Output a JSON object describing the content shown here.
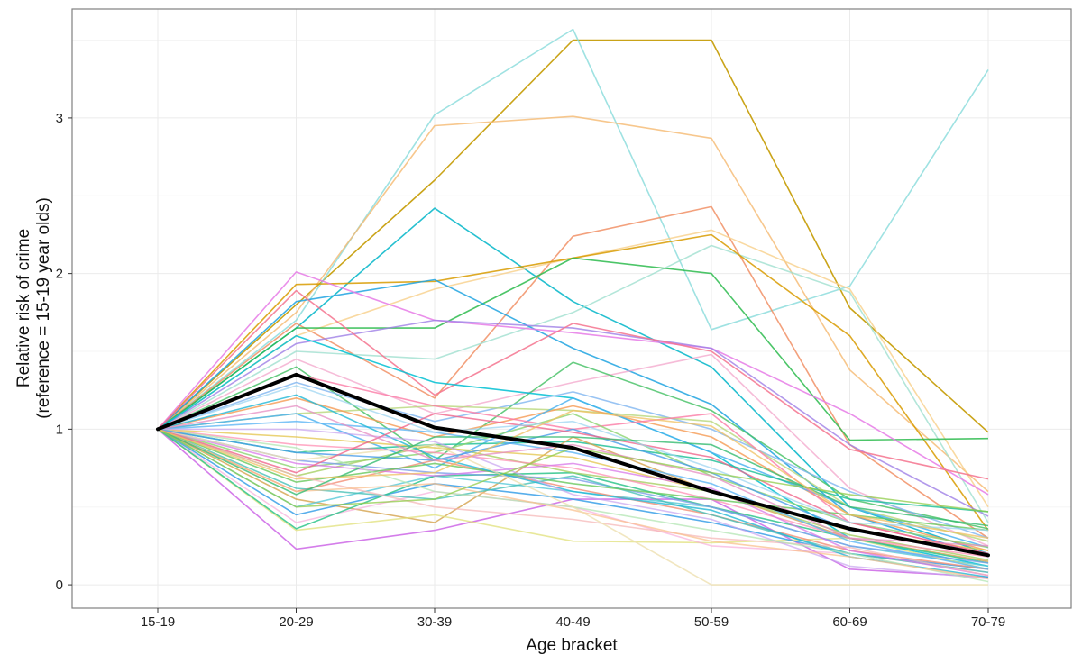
{
  "chart_data": {
    "type": "line",
    "xlabel": "Age bracket",
    "ylabel_lines": [
      "Relative risk of crime",
      "(reference = 15-19 year olds)"
    ],
    "categories": [
      "15-19",
      "20-29",
      "30-39",
      "40-49",
      "50-59",
      "60-69",
      "70-79"
    ],
    "ylim": [
      -0.15,
      3.7
    ],
    "yticks": [
      0,
      1,
      2,
      3
    ],
    "ytick_labels": [
      "0",
      "1",
      "2",
      "3"
    ],
    "grid": true,
    "average_series": {
      "name": "Average",
      "color": "#000000",
      "values": [
        1.0,
        1.35,
        1.01,
        0.88,
        0.6,
        0.36,
        0.19
      ]
    },
    "series": [
      {
        "color": "#C49A00",
        "opacity": 0.9,
        "values": [
          1.0,
          1.8,
          2.6,
          3.5,
          3.5,
          1.78,
          0.98
        ]
      },
      {
        "color": "#7FD8D8",
        "opacity": 0.75,
        "values": [
          1.0,
          1.7,
          3.02,
          3.57,
          1.64,
          1.92,
          3.31
        ]
      },
      {
        "color": "#F5B971",
        "opacity": 0.8,
        "values": [
          1.0,
          1.75,
          2.95,
          3.01,
          2.87,
          1.38,
          0.6
        ]
      },
      {
        "color": "#00B5C8",
        "opacity": 0.85,
        "values": [
          1.0,
          1.65,
          2.42,
          1.82,
          1.4,
          0.5,
          0.2
        ]
      },
      {
        "color": "#F08A5D",
        "opacity": 0.8,
        "values": [
          1.0,
          1.68,
          1.2,
          2.24,
          2.43,
          0.9,
          0.3
        ]
      },
      {
        "color": "#F7D08A",
        "opacity": 0.8,
        "values": [
          1.0,
          1.6,
          1.9,
          2.1,
          2.28,
          1.9,
          0.5
        ]
      },
      {
        "color": "#A0E0CF",
        "opacity": 0.8,
        "values": [
          1.0,
          1.5,
          1.45,
          1.75,
          2.18,
          1.88,
          0.4
        ]
      },
      {
        "color": "#D89B00",
        "opacity": 0.85,
        "values": [
          1.0,
          1.93,
          1.95,
          2.1,
          2.25,
          1.6,
          0.35
        ]
      },
      {
        "color": "#2DBB4E",
        "opacity": 0.85,
        "values": [
          1.0,
          1.65,
          1.65,
          2.1,
          2.0,
          0.93,
          0.94
        ]
      },
      {
        "color": "#1FA3E0",
        "opacity": 0.85,
        "values": [
          1.0,
          1.82,
          1.96,
          1.52,
          1.16,
          0.45,
          0.18
        ]
      },
      {
        "color": "#E67BE6",
        "opacity": 0.85,
        "values": [
          1.0,
          2.01,
          1.7,
          1.62,
          1.52,
          1.1,
          0.58
        ]
      },
      {
        "color": "#9F7FE6",
        "opacity": 0.8,
        "values": [
          1.0,
          1.55,
          1.7,
          1.65,
          1.52,
          0.9,
          0.44
        ]
      },
      {
        "color": "#F4738E",
        "opacity": 0.85,
        "values": [
          1.0,
          1.89,
          1.22,
          1.68,
          1.5,
          0.87,
          0.68
        ]
      },
      {
        "color": "#F2A0C8",
        "opacity": 0.7,
        "values": [
          1.0,
          1.45,
          1.1,
          1.3,
          1.48,
          0.62,
          0.25
        ]
      },
      {
        "color": "#4CC36B",
        "opacity": 0.85,
        "values": [
          1.0,
          1.4,
          0.8,
          1.43,
          1.12,
          0.55,
          0.36
        ]
      },
      {
        "color": "#00BFD2",
        "opacity": 0.85,
        "values": [
          1.0,
          1.6,
          1.3,
          1.2,
          0.85,
          0.3,
          0.12
        ]
      },
      {
        "color": "#7FB5F0",
        "opacity": 0.8,
        "values": [
          1.0,
          1.3,
          1.05,
          1.24,
          1.0,
          0.6,
          0.3
        ]
      },
      {
        "color": "#B8D77A",
        "opacity": 0.8,
        "values": [
          1.0,
          1.1,
          1.15,
          1.12,
          1.05,
          0.5,
          0.28
        ]
      },
      {
        "color": "#F59A52",
        "opacity": 0.8,
        "values": [
          1.0,
          1.2,
          0.95,
          1.15,
          0.95,
          0.45,
          0.22
        ]
      },
      {
        "color": "#4DB3F0",
        "opacity": 0.85,
        "values": [
          1.0,
          1.1,
          0.75,
          1.2,
          0.85,
          0.5,
          0.24
        ]
      },
      {
        "color": "#FB7AA5",
        "opacity": 0.8,
        "values": [
          1.0,
          1.35,
          1.15,
          1.0,
          1.1,
          0.4,
          0.2
        ]
      },
      {
        "color": "#26C29A",
        "opacity": 0.85,
        "values": [
          1.0,
          0.85,
          0.9,
          0.92,
          0.8,
          0.55,
          0.47
        ]
      },
      {
        "color": "#8BD470",
        "opacity": 0.8,
        "values": [
          1.0,
          0.75,
          0.85,
          1.1,
          0.7,
          0.4,
          0.24
        ]
      },
      {
        "color": "#D4A24C",
        "opacity": 0.8,
        "values": [
          1.0,
          0.55,
          0.4,
          0.95,
          0.6,
          0.3,
          0.15
        ]
      },
      {
        "color": "#58C9D8",
        "opacity": 0.8,
        "values": [
          1.0,
          0.5,
          0.7,
          0.6,
          0.5,
          0.25,
          0.12
        ]
      },
      {
        "color": "#CC66E6",
        "opacity": 0.85,
        "values": [
          1.0,
          0.23,
          0.35,
          0.55,
          0.55,
          0.1,
          0.05
        ]
      },
      {
        "color": "#E0E07A",
        "opacity": 0.75,
        "values": [
          1.0,
          0.35,
          0.45,
          0.28,
          0.27,
          0.3,
          0.1
        ]
      },
      {
        "color": "#F7A8D8",
        "opacity": 0.65,
        "values": [
          1.0,
          0.4,
          0.6,
          0.5,
          0.25,
          0.2,
          0.08
        ]
      },
      {
        "color": "#3AA0E8",
        "opacity": 0.85,
        "values": [
          1.0,
          0.45,
          0.65,
          0.55,
          0.4,
          0.2,
          0.1
        ]
      },
      {
        "color": "#2FC48C",
        "opacity": 0.85,
        "values": [
          1.0,
          0.36,
          0.7,
          0.72,
          0.5,
          0.3,
          0.14
        ]
      },
      {
        "color": "#F28D74",
        "opacity": 0.8,
        "values": [
          1.0,
          0.6,
          0.8,
          0.62,
          0.45,
          0.22,
          0.1
        ]
      },
      {
        "color": "#A6CF63",
        "opacity": 0.8,
        "values": [
          1.0,
          0.7,
          0.9,
          0.72,
          0.6,
          0.32,
          0.16
        ]
      },
      {
        "color": "#7E9FEA",
        "opacity": 0.8,
        "values": [
          1.0,
          0.8,
          0.72,
          0.68,
          0.5,
          0.25,
          0.14
        ]
      },
      {
        "color": "#FF8FB3",
        "opacity": 0.75,
        "values": [
          1.0,
          0.9,
          0.85,
          0.75,
          0.55,
          0.3,
          0.18
        ]
      },
      {
        "color": "#47C1B8",
        "opacity": 0.8,
        "values": [
          1.0,
          0.62,
          0.55,
          0.7,
          0.45,
          0.2,
          0.08
        ]
      },
      {
        "color": "#E3C44A",
        "opacity": 0.75,
        "values": [
          1.0,
          0.95,
          0.88,
          0.82,
          0.6,
          0.35,
          0.22
        ]
      },
      {
        "color": "#5FB7F5",
        "opacity": 0.8,
        "values": [
          1.0,
          1.05,
          0.98,
          0.85,
          0.65,
          0.28,
          0.1
        ]
      },
      {
        "color": "#D877E8",
        "opacity": 0.75,
        "values": [
          1.0,
          0.78,
          0.7,
          0.78,
          0.62,
          0.22,
          0.06
        ]
      },
      {
        "color": "#68C85C",
        "opacity": 0.8,
        "values": [
          1.0,
          0.66,
          0.78,
          0.65,
          0.55,
          0.45,
          0.35
        ]
      },
      {
        "color": "#F5B3B3",
        "opacity": 0.7,
        "values": [
          1.0,
          0.7,
          0.5,
          0.42,
          0.3,
          0.24,
          0.06
        ]
      },
      {
        "color": "#20B8D6",
        "opacity": 0.8,
        "values": [
          1.0,
          1.22,
          0.82,
          0.6,
          0.48,
          0.18,
          0.05
        ]
      },
      {
        "color": "#C8A2F0",
        "opacity": 0.7,
        "values": [
          1.0,
          1.0,
          0.92,
          0.58,
          0.42,
          0.12,
          0.04
        ]
      },
      {
        "color": "#B3E6B3",
        "opacity": 0.75,
        "values": [
          1.0,
          0.88,
          0.6,
          0.5,
          0.35,
          0.2,
          0.02
        ]
      },
      {
        "color": "#FAC08F",
        "opacity": 0.75,
        "values": [
          1.0,
          0.6,
          0.65,
          0.48,
          0.28,
          0.18,
          0.04
        ]
      },
      {
        "color": "#EDE0B0",
        "opacity": 0.8,
        "values": [
          1.0,
          0.8,
          0.9,
          0.5,
          0.0,
          0.0,
          0.0
        ]
      },
      {
        "color": "#4A9EE8",
        "opacity": 0.8,
        "values": [
          1.0,
          0.85,
          0.8,
          1.0,
          0.72,
          0.35,
          0.2
        ]
      },
      {
        "color": "#F0668C",
        "opacity": 0.8,
        "values": [
          1.0,
          0.72,
          1.1,
          0.98,
          0.82,
          0.4,
          0.2
        ]
      },
      {
        "color": "#35BC70",
        "opacity": 0.8,
        "values": [
          1.0,
          0.58,
          0.95,
          0.95,
          0.9,
          0.5,
          0.38
        ]
      },
      {
        "color": "#9FD6F2",
        "opacity": 0.75,
        "values": [
          1.0,
          1.28,
          0.98,
          1.05,
          0.75,
          0.4,
          0.35
        ]
      },
      {
        "color": "#E58CC2",
        "opacity": 0.75,
        "values": [
          1.0,
          1.15,
          0.8,
          0.9,
          0.7,
          0.3,
          0.25
        ]
      },
      {
        "color": "#90CC4A",
        "opacity": 0.75,
        "values": [
          1.0,
          0.5,
          0.55,
          0.88,
          0.72,
          0.58,
          0.47
        ]
      },
      {
        "color": "#F0C060",
        "opacity": 0.75,
        "values": [
          1.0,
          0.68,
          0.72,
          1.12,
          1.02,
          0.45,
          0.3
        ]
      }
    ]
  }
}
